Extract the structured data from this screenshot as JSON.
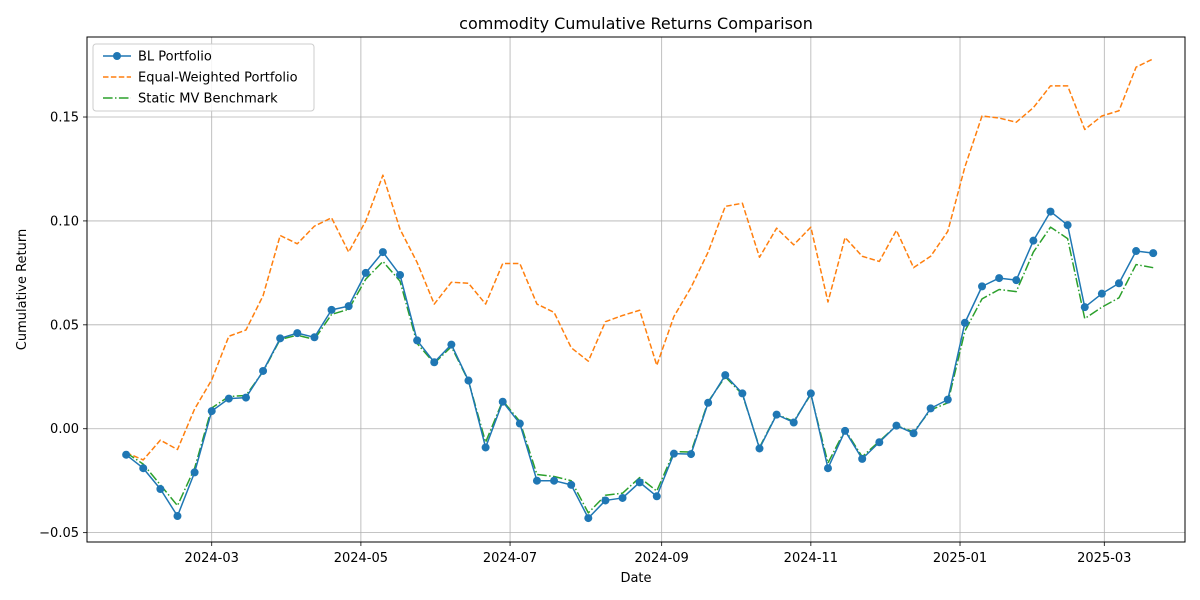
{
  "chart_data": {
    "type": "line",
    "title": "commodity Cumulative Returns Comparison",
    "xlabel": "Date",
    "ylabel": "Cumulative Return",
    "grid": true,
    "legend_position": "top-left",
    "xlim": [
      "2024-01-10",
      "2025-04-03"
    ],
    "ylim": [
      -0.0545,
      0.1885
    ],
    "x_ticks": [
      {
        "value": "2024-03-01",
        "label": "2024-03"
      },
      {
        "value": "2024-05-01",
        "label": "2024-05"
      },
      {
        "value": "2024-07-01",
        "label": "2024-07"
      },
      {
        "value": "2024-09-01",
        "label": "2024-09"
      },
      {
        "value": "2024-11-01",
        "label": "2024-11"
      },
      {
        "value": "2025-01-01",
        "label": "2025-01"
      },
      {
        "value": "2025-03-01",
        "label": "2025-03"
      }
    ],
    "y_ticks": [
      {
        "value": -0.05,
        "label": "−0.05"
      },
      {
        "value": 0.0,
        "label": "0.00"
      },
      {
        "value": 0.05,
        "label": "0.05"
      },
      {
        "value": 0.1,
        "label": "0.10"
      },
      {
        "value": 0.15,
        "label": "0.15"
      }
    ],
    "x": [
      "2024-01-26",
      "2024-02-02",
      "2024-02-09",
      "2024-02-16",
      "2024-02-23",
      "2024-03-01",
      "2024-03-08",
      "2024-03-15",
      "2024-03-22",
      "2024-03-29",
      "2024-04-05",
      "2024-04-12",
      "2024-04-19",
      "2024-04-26",
      "2024-05-03",
      "2024-05-10",
      "2024-05-17",
      "2024-05-24",
      "2024-05-31",
      "2024-06-07",
      "2024-06-14",
      "2024-06-21",
      "2024-06-28",
      "2024-07-05",
      "2024-07-12",
      "2024-07-19",
      "2024-07-26",
      "2024-08-02",
      "2024-08-09",
      "2024-08-16",
      "2024-08-23",
      "2024-08-30",
      "2024-09-06",
      "2024-09-13",
      "2024-09-20",
      "2024-09-27",
      "2024-10-04",
      "2024-10-11",
      "2024-10-18",
      "2024-10-25",
      "2024-11-01",
      "2024-11-08",
      "2024-11-15",
      "2024-11-22",
      "2024-11-29",
      "2024-12-06",
      "2024-12-13",
      "2024-12-20",
      "2024-12-27",
      "2025-01-03",
      "2025-01-10",
      "2025-01-17",
      "2025-01-24",
      "2025-01-31",
      "2025-02-07",
      "2025-02-14",
      "2025-02-21",
      "2025-02-28",
      "2025-03-07",
      "2025-03-14",
      "2025-03-21"
    ],
    "series": [
      {
        "name": "BL Portfolio",
        "color": "#1f77b4",
        "style": "solid-with-circle-markers",
        "values": [
          -0.0125,
          -0.019,
          -0.029,
          -0.042,
          -0.021,
          0.0085,
          0.0145,
          0.015,
          0.0278,
          0.0435,
          0.046,
          0.044,
          0.0572,
          0.059,
          0.075,
          0.085,
          0.074,
          0.0425,
          0.032,
          0.0405,
          0.0232,
          -0.009,
          0.013,
          0.0025,
          -0.025,
          -0.025,
          -0.027,
          -0.043,
          -0.0345,
          -0.0333,
          -0.0258,
          -0.0325,
          -0.012,
          -0.0122,
          0.0125,
          0.0258,
          0.017,
          -0.0095,
          0.0068,
          0.003,
          0.017,
          -0.019,
          -0.001,
          -0.0145,
          -0.0065,
          0.0015,
          -0.0022,
          0.0098,
          0.014,
          0.051,
          0.0685,
          0.0725,
          0.0715,
          0.0905,
          0.1045,
          0.098,
          0.0585,
          0.065,
          0.07,
          0.0855,
          0.0845
        ]
      },
      {
        "name": "Equal-Weighted Portfolio",
        "color": "#ff7f0e",
        "style": "dashed",
        "values": [
          -0.0115,
          -0.015,
          -0.0055,
          -0.01,
          0.0095,
          0.0235,
          0.0445,
          0.0475,
          0.064,
          0.093,
          0.089,
          0.0975,
          0.1015,
          0.085,
          0.1,
          0.122,
          0.096,
          0.08,
          0.06,
          0.0705,
          0.07,
          0.06,
          0.0795,
          0.0795,
          0.06,
          0.056,
          0.039,
          0.0325,
          0.0515,
          0.0545,
          0.057,
          0.0305,
          0.054,
          0.068,
          0.085,
          0.107,
          0.1085,
          0.0825,
          0.0965,
          0.0885,
          0.097,
          0.061,
          0.092,
          0.083,
          0.0805,
          0.0955,
          0.0775,
          0.083,
          0.095,
          0.126,
          0.1505,
          0.1495,
          0.1475,
          0.1545,
          0.165,
          0.165,
          0.144,
          0.1505,
          0.153,
          0.174,
          0.178
        ]
      },
      {
        "name": "Static MV Benchmark",
        "color": "#2ca02c",
        "style": "dash-dot",
        "values": [
          -0.0115,
          -0.017,
          -0.027,
          -0.037,
          -0.019,
          0.01,
          0.0155,
          0.016,
          0.0275,
          0.043,
          0.045,
          0.043,
          0.055,
          0.0575,
          0.072,
          0.0805,
          0.071,
          0.041,
          0.0315,
          0.0395,
          0.023,
          -0.0065,
          0.0135,
          0.0035,
          -0.022,
          -0.023,
          -0.025,
          -0.0405,
          -0.032,
          -0.031,
          -0.0235,
          -0.03,
          -0.011,
          -0.0112,
          0.013,
          0.025,
          0.0165,
          -0.009,
          0.007,
          0.0035,
          0.0165,
          -0.0165,
          -0.0005,
          -0.0135,
          -0.006,
          0.0015,
          -0.0015,
          0.009,
          0.0125,
          0.047,
          0.0625,
          0.067,
          0.066,
          0.085,
          0.097,
          0.0915,
          0.053,
          0.0585,
          0.063,
          0.079,
          0.0775
        ]
      }
    ]
  }
}
